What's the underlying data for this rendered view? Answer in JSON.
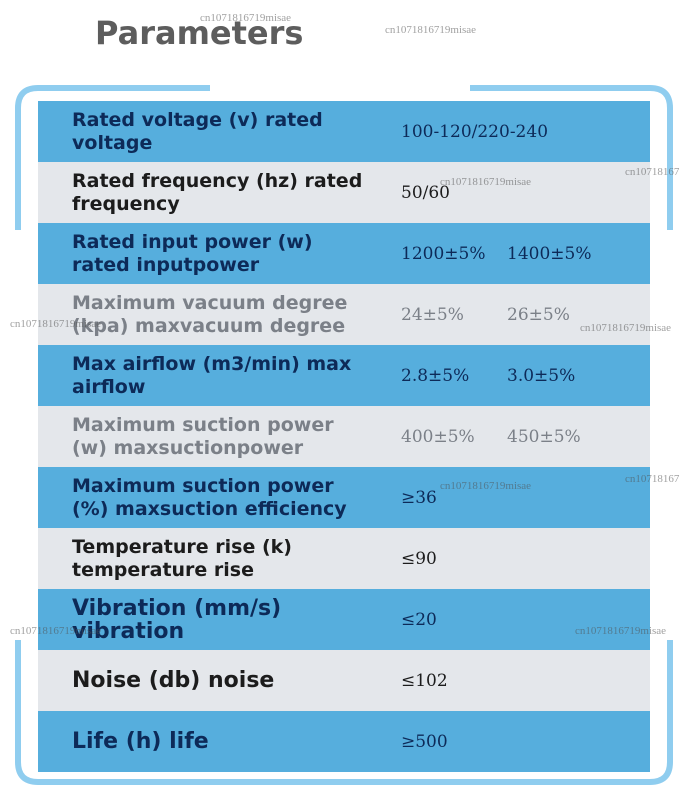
{
  "header": {
    "title": "Parameters"
  },
  "table": {
    "rows": [
      [
        "Rated voltage (v) rated voltage",
        [
          "100-120/220-240"
        ]
      ],
      [
        "Rated frequency (hz) rated frequency",
        [
          "50/60"
        ]
      ],
      [
        "Rated input power (w) rated inputpower",
        [
          "1200±5%",
          "1400±5%"
        ]
      ],
      [
        "Maximum vacuum degree (kpa) maxvacuum degree",
        [
          "24±5%",
          "26±5%"
        ]
      ],
      [
        "Max airflow (m3/min) max airflow",
        [
          "2.8±5%",
          "3.0±5%"
        ]
      ],
      [
        "Maximum suction power (w) maxsuctionpower",
        [
          "400±5%",
          "450±5%"
        ]
      ],
      [
        "Maximum suction power (%) maxsuction efficiency",
        [
          "≥36"
        ]
      ],
      [
        "Temperature rise (k) temperature rise",
        [
          "≤90"
        ]
      ],
      [
        "Vibration (mm/s) vibration",
        [
          "≤20"
        ]
      ],
      [
        "Noise (db) noise",
        [
          "≤102"
        ]
      ],
      [
        "Life (h) life",
        [
          "≥500"
        ]
      ]
    ]
  },
  "watermarks": [
    "cn1071816719misae",
    "cn1071816719misae",
    "cn10718167",
    "cn1071816719misae",
    "cn1071816719misae",
    "cn1071816719misae",
    "cn10718167",
    "cn1071816719misae",
    "cn1071816719misae",
    "cn1071816719misae"
  ]
}
